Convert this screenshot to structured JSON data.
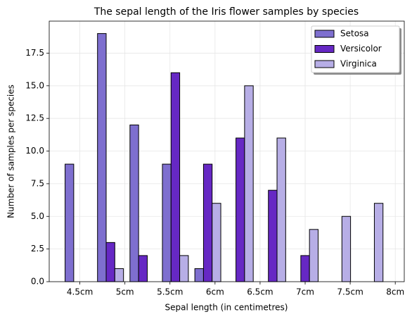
{
  "chart_data": {
    "type": "histogram",
    "title": "The sepal length of the Iris flower samples by species",
    "x_label": "Sepal length (in centimetres)",
    "y_label": "Number of samples per species",
    "bins": [
      4.3,
      4.66,
      5.02,
      5.38,
      5.74,
      6.1,
      6.46,
      6.82,
      7.18,
      7.54,
      7.9
    ],
    "series": [
      {
        "name": "Setosa",
        "color": "#7e6fcf",
        "values": [
          9,
          19,
          12,
          9,
          1,
          0,
          0,
          0,
          0,
          0
        ]
      },
      {
        "name": "Versicolor",
        "color": "#6628c4",
        "values": [
          0,
          3,
          2,
          16,
          9,
          11,
          7,
          2,
          0,
          0
        ]
      },
      {
        "name": "Virginica",
        "color": "#b7aee6",
        "values": [
          0,
          1,
          0,
          2,
          6,
          15,
          11,
          4,
          5,
          6
        ]
      }
    ],
    "xlim": [
      4.16,
      8.1
    ],
    "xticks": [
      {
        "value": 4.5,
        "label": "4.5cm"
      },
      {
        "value": 5,
        "label": "5cm"
      },
      {
        "value": 5.5,
        "label": "5.5cm"
      },
      {
        "value": 6,
        "label": "6cm"
      },
      {
        "value": 6.5,
        "label": "6.5cm"
      },
      {
        "value": 7,
        "label": "7cm"
      },
      {
        "value": 7.5,
        "label": "7.5cm"
      },
      {
        "value": 8,
        "label": "8cm"
      }
    ],
    "ylim": [
      0,
      19.95
    ],
    "yticks": [
      {
        "value": 0,
        "label": "0.0"
      },
      2.5,
      {
        "value": 5,
        "label": "5.0"
      },
      7.5,
      {
        "value": 10,
        "label": "10.0"
      },
      12.5,
      {
        "value": 15,
        "label": "15.0"
      },
      17.5
    ],
    "grid": true,
    "legend": "upper right"
  }
}
